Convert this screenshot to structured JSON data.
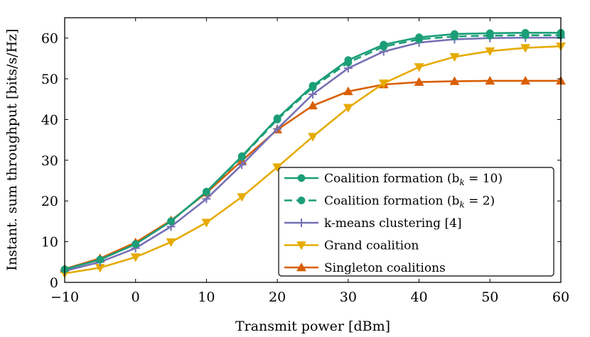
{
  "chart_data": {
    "type": "line",
    "xlabel": "Transmit power [dBm]",
    "ylabel": "Instant. sum throughput [bits/s/Hz]",
    "xlim": [
      -10,
      60
    ],
    "ylim": [
      0,
      65
    ],
    "xticks": [
      -10,
      0,
      10,
      20,
      30,
      40,
      50,
      60
    ],
    "yticks": [
      0,
      10,
      20,
      30,
      40,
      50,
      60
    ],
    "xtick_labels": [
      "−10",
      "0",
      "10",
      "20",
      "30",
      "40",
      "50",
      "60"
    ],
    "ytick_labels": [
      "0",
      "10",
      "20",
      "30",
      "40",
      "50",
      "60"
    ],
    "grid": false,
    "legend_position": "bottom-right",
    "x": [
      -10,
      -5,
      0,
      5,
      10,
      15,
      20,
      25,
      30,
      35,
      40,
      45,
      50,
      55,
      60
    ],
    "series": [
      {
        "name": "Coalition formation (b",
        "name_sub": "k",
        "name_tail": " = 10)",
        "color": "#1b9e77",
        "marker": "circle",
        "dash": "solid",
        "values": [
          3.2,
          5.6,
          9.4,
          15.0,
          22.3,
          31.0,
          40.3,
          48.3,
          54.6,
          58.4,
          60.2,
          61.0,
          61.2,
          61.3,
          61.3
        ]
      },
      {
        "name": "Coalition formation (b",
        "name_sub": "k",
        "name_tail": " = 2)",
        "color": "#1b9e77",
        "marker": "circle",
        "dash": "dashed",
        "values": [
          3.2,
          5.6,
          9.4,
          15.0,
          22.2,
          30.8,
          40.0,
          47.9,
          54.0,
          57.9,
          59.7,
          60.4,
          60.6,
          60.7,
          60.7
        ]
      },
      {
        "name": "k-means clustering [4]",
        "color": "#7570b3",
        "marker": "plus",
        "dash": "solid",
        "values": [
          2.8,
          5.0,
          8.4,
          13.7,
          20.5,
          28.9,
          37.7,
          46.2,
          52.6,
          56.7,
          58.9,
          59.7,
          60.0,
          60.1,
          60.1
        ]
      },
      {
        "name": "Grand coalition",
        "color": "#e6ab02",
        "marker": "triangle-down",
        "dash": "solid",
        "values": [
          2.2,
          3.6,
          6.2,
          9.9,
          14.7,
          21.0,
          28.3,
          35.8,
          42.9,
          48.9,
          52.9,
          55.4,
          56.8,
          57.6,
          58.0
        ]
      },
      {
        "name": "Singleton coalitions",
        "color": "#d95f02",
        "marker": "triangle-up",
        "dash": "solid",
        "values": [
          3.3,
          5.9,
          9.8,
          15.2,
          22.0,
          29.9,
          37.5,
          43.4,
          46.9,
          48.6,
          49.2,
          49.4,
          49.5,
          49.5,
          49.5
        ]
      }
    ]
  }
}
